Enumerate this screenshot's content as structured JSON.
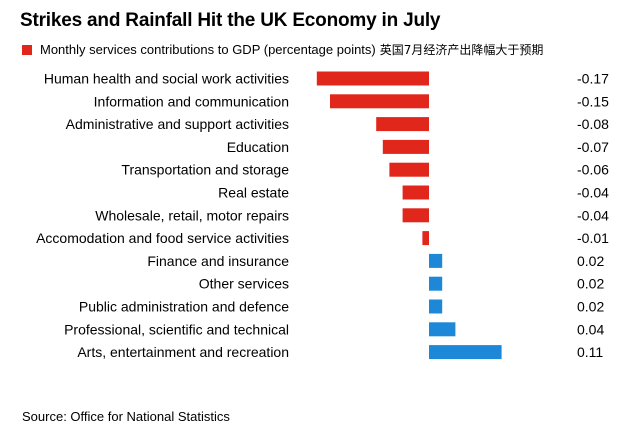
{
  "title": "Strikes and Rainfall Hit the UK Economy in July",
  "legend": {
    "label": "Monthly services contributions to GDP (percentage points)",
    "extra": "英国7月经济产出降幅大于预期"
  },
  "source": "Source: Office for National Statistics",
  "colors": {
    "negative": "#e1261c",
    "positive": "#1e88d8"
  },
  "chart_data": {
    "type": "bar",
    "orientation": "horizontal",
    "categories": [
      "Human health and social work activities",
      "Information and communication",
      "Administrative and support activities",
      "Education",
      "Transportation and storage",
      "Real estate",
      "Wholesale, retail, motor repairs",
      "Accomodation and food service activities",
      "Finance and insurance",
      "Other services",
      "Public administration and defence",
      "Professional, scientific and technical",
      "Arts, entertainment and recreation"
    ],
    "values": [
      -0.17,
      -0.15,
      -0.08,
      -0.07,
      -0.06,
      -0.04,
      -0.04,
      -0.01,
      0.02,
      0.02,
      0.02,
      0.04,
      0.11
    ],
    "value_labels": [
      "-0.17",
      "-0.15",
      "-0.08",
      "-0.07",
      "-0.06",
      "-0.04",
      "-0.04",
      "-0.01",
      "0.02",
      "0.02",
      "0.02",
      "0.04",
      "0.11"
    ],
    "series": [
      {
        "name": "Monthly services contributions to GDP (percentage points)"
      }
    ],
    "xlim": [
      -0.17,
      0.11
    ],
    "grid": false,
    "legend_position": "top-left"
  }
}
